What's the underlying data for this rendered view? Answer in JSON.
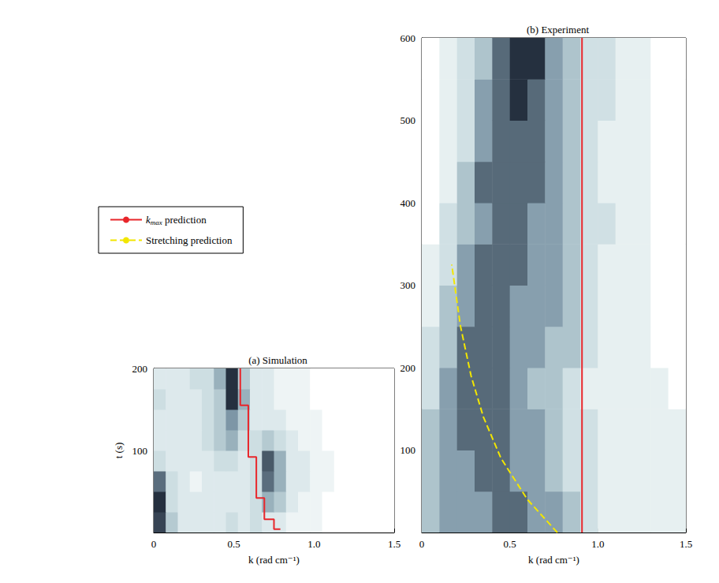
{
  "chart_data": [
    {
      "type": "heatmap",
      "title": "(a) Simulation",
      "x_label": "k (rad cm⁻¹)",
      "y_label": "t (s)",
      "xlim": [
        0,
        1.5
      ],
      "ylim": [
        0,
        200
      ],
      "xticks": [
        0,
        0.5,
        {
          "value": 1,
          "label": "1.0"
        },
        1.5
      ],
      "yticks": [
        100,
        200
      ],
      "cells": {
        "k_edges": [
          0,
          0.075,
          0.15,
          0.225,
          0.3,
          0.375,
          0.45,
          0.525,
          0.6,
          0.675,
          0.75,
          0.825,
          0.9,
          0.975,
          1.05,
          1.125,
          1.2,
          1.275,
          1.35,
          1.425,
          1.5
        ],
        "t_edges": [
          0,
          25,
          50,
          75,
          100,
          125,
          150,
          175,
          200
        ],
        "values": [
          [
            0.9,
            0.5,
            0.3,
            0.3,
            0.3,
            0.3,
            0.4,
            0.3,
            0.4,
            0.3,
            0.3,
            0.2,
            0.2,
            0.2,
            0.1,
            0.1,
            0.1,
            0.1,
            0.1,
            0.1
          ],
          [
            0.95,
            0.4,
            0.3,
            0.3,
            0.3,
            0.3,
            0.3,
            0.3,
            0.4,
            0.6,
            0.5,
            0.3,
            0.2,
            0.2,
            0.1,
            0.1,
            0.1,
            0.1,
            0.1,
            0.1
          ],
          [
            0.8,
            0.4,
            0.3,
            0.2,
            0.3,
            0.3,
            0.3,
            0.3,
            0.4,
            0.8,
            0.6,
            0.3,
            0.3,
            0.2,
            0.2,
            0.1,
            0.1,
            0.1,
            0.1,
            0.1
          ],
          [
            0.4,
            0.3,
            0.3,
            0.3,
            0.3,
            0.4,
            0.4,
            0.3,
            0.4,
            0.85,
            0.6,
            0.3,
            0.3,
            0.2,
            0.2,
            0.1,
            0.1,
            0.1,
            0.1,
            0.1
          ],
          [
            0.3,
            0.3,
            0.3,
            0.3,
            0.4,
            0.5,
            0.6,
            0.4,
            0.4,
            0.5,
            0.4,
            0.3,
            0.2,
            0.2,
            0.1,
            0.1,
            0.1,
            0.1,
            0.1,
            0.1
          ],
          [
            0.3,
            0.3,
            0.3,
            0.3,
            0.4,
            0.5,
            0.7,
            0.5,
            0.3,
            0.3,
            0.3,
            0.2,
            0.2,
            0.2,
            0.1,
            0.1,
            0.1,
            0.1,
            0.1,
            0.1
          ],
          [
            0.4,
            0.3,
            0.3,
            0.3,
            0.4,
            0.5,
            0.95,
            0.6,
            0.3,
            0.3,
            0.2,
            0.2,
            0.2,
            0.1,
            0.1,
            0.1,
            0.1,
            0.1,
            0.1,
            0.1
          ],
          [
            0.3,
            0.3,
            0.3,
            0.4,
            0.4,
            0.6,
            0.95,
            0.5,
            0.3,
            0.3,
            0.2,
            0.2,
            0.2,
            0.1,
            0.1,
            0.1,
            0.1,
            0.1,
            0.1,
            0.1
          ]
        ]
      },
      "series": [
        {
          "name": "kmax prediction",
          "type": "line",
          "color": "#e8262b",
          "line_style": "solid",
          "x": [
            0.54,
            0.54,
            0.59,
            0.59,
            0.64,
            0.64,
            0.69,
            0.69,
            0.75,
            0.75,
            0.79
          ],
          "values": [
            200,
            155,
            155,
            92,
            92,
            42,
            42,
            16,
            16,
            4,
            4
          ]
        }
      ]
    },
    {
      "type": "heatmap",
      "title": "(b) Experiment",
      "x_label": "k (rad cm⁻¹)",
      "xlim": [
        0,
        1.5
      ],
      "ylim": [
        0,
        600
      ],
      "xticks": [
        0,
        0.5,
        {
          "value": 1,
          "label": "1.0"
        },
        1.5
      ],
      "yticks": [
        100,
        200,
        300,
        400,
        500,
        600
      ],
      "legend": "left",
      "cells": {
        "k_edges": [
          0,
          0.1,
          0.2,
          0.3,
          0.4,
          0.5,
          0.6,
          0.7,
          0.8,
          0.9,
          1.0,
          1.1,
          1.2,
          1.3,
          1.4,
          1.5
        ],
        "t_edges": [
          0,
          50,
          100,
          150,
          200,
          250,
          300,
          350,
          400,
          450,
          500,
          550,
          600
        ],
        "values": [
          [
            0.5,
            0.6,
            0.6,
            0.6,
            0.7,
            0.7,
            0.6,
            0.6,
            0.5,
            0.4,
            0.3,
            0.3,
            0.3,
            0.3,
            0.3
          ],
          [
            0.5,
            0.6,
            0.6,
            0.7,
            0.7,
            0.6,
            0.6,
            0.5,
            0.4,
            0.4,
            0.3,
            0.3,
            0.3,
            0.3,
            0.3
          ],
          [
            0.5,
            0.6,
            0.7,
            0.7,
            0.7,
            0.6,
            0.6,
            0.5,
            0.4,
            0.4,
            0.3,
            0.3,
            0.3,
            0.3,
            0.3
          ],
          [
            0.4,
            0.6,
            0.7,
            0.7,
            0.7,
            0.6,
            0.5,
            0.5,
            0.4,
            0.3,
            0.3,
            0.3,
            0.3,
            0.3,
            0.2
          ],
          [
            0.4,
            0.5,
            0.7,
            0.7,
            0.7,
            0.6,
            0.6,
            0.5,
            0.5,
            0.4,
            0.3,
            0.3,
            0.3,
            0.2,
            0.2
          ],
          [
            0.3,
            0.5,
            0.6,
            0.7,
            0.7,
            0.6,
            0.6,
            0.6,
            0.5,
            0.4,
            0.3,
            0.3,
            0.3,
            0.2,
            0.2
          ],
          [
            0.3,
            0.4,
            0.6,
            0.7,
            0.7,
            0.7,
            0.6,
            0.6,
            0.5,
            0.4,
            0.3,
            0.3,
            0.3,
            0.2,
            0.2
          ],
          [
            0.2,
            0.4,
            0.5,
            0.6,
            0.7,
            0.7,
            0.6,
            0.6,
            0.5,
            0.4,
            0.4,
            0.3,
            0.3,
            0.2,
            0.2
          ],
          [
            0.2,
            0.3,
            0.5,
            0.7,
            0.7,
            0.7,
            0.7,
            0.6,
            0.5,
            0.4,
            0.3,
            0.3,
            0.3,
            0.2,
            0.2
          ],
          [
            0.2,
            0.3,
            0.4,
            0.6,
            0.7,
            0.7,
            0.7,
            0.6,
            0.5,
            0.4,
            0.3,
            0.3,
            0.3,
            0.2,
            0.2
          ],
          [
            0.2,
            0.3,
            0.4,
            0.6,
            0.7,
            0.8,
            0.7,
            0.6,
            0.5,
            0.4,
            0.4,
            0.3,
            0.3,
            0.2,
            0.2
          ],
          [
            0.2,
            0.3,
            0.4,
            0.5,
            0.7,
            0.8,
            0.8,
            0.6,
            0.5,
            0.4,
            0.4,
            0.3,
            0.3,
            0.2,
            0.2
          ]
        ]
      },
      "series": [
        {
          "name": "Stretching prediction",
          "type": "line",
          "color": "#f2e600",
          "line_style": "dashed",
          "x": [
            0.77,
            0.6,
            0.45,
            0.35,
            0.28,
            0.22,
            0.17
          ],
          "values": [
            0,
            40,
            90,
            140,
            190,
            250,
            325
          ]
        },
        {
          "name": "kmax prediction",
          "type": "line",
          "color": "#e8262b",
          "line_style": "solid",
          "x": [
            0.91,
            0.91
          ],
          "values": [
            0,
            600
          ]
        }
      ]
    }
  ]
}
